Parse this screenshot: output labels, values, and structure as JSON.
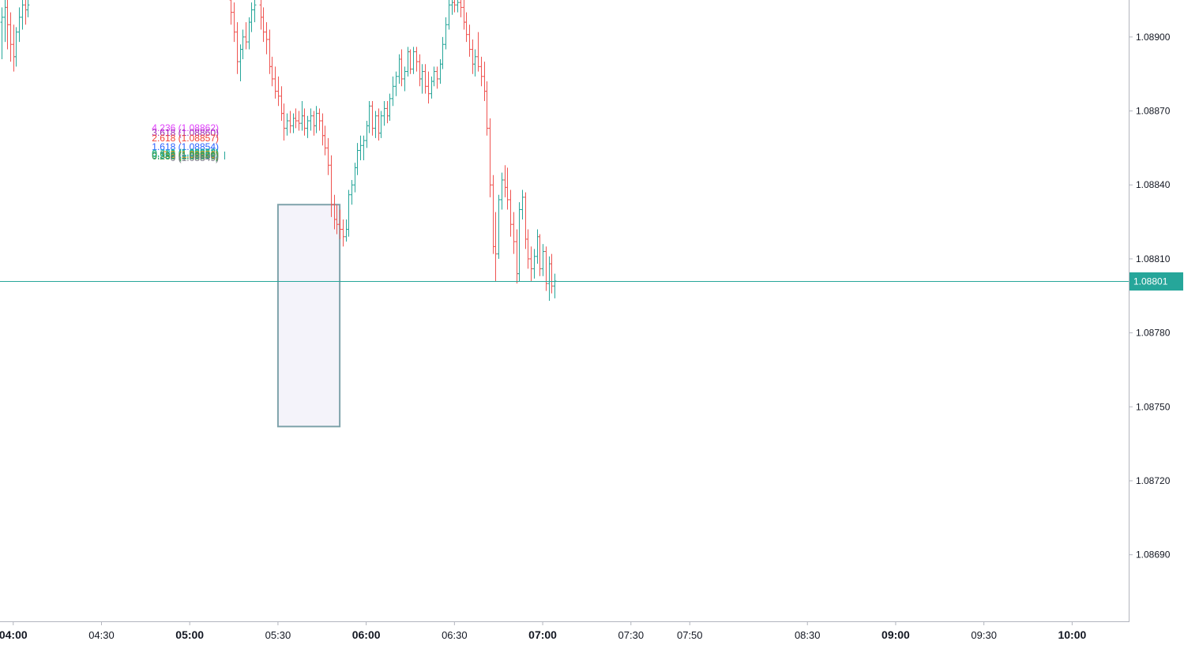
{
  "chart_data": {
    "type": "candlestick",
    "title": "",
    "y_axis": {
      "ticks": [
        "1.08900",
        "1.08870",
        "1.08840",
        "1.08810",
        "1.08780",
        "1.08750",
        "1.08720",
        "1.08690"
      ],
      "ylim": [
        1.08663,
        1.08915
      ]
    },
    "x_axis": {
      "ticks": [
        {
          "label": "04:00",
          "t": 240,
          "major": true
        },
        {
          "label": "04:30",
          "t": 270,
          "major": false
        },
        {
          "label": "05:00",
          "t": 300,
          "major": true
        },
        {
          "label": "05:30",
          "t": 330,
          "major": false
        },
        {
          "label": "06:00",
          "t": 360,
          "major": true
        },
        {
          "label": "06:30",
          "t": 390,
          "major": false
        },
        {
          "label": "07:00",
          "t": 420,
          "major": true
        },
        {
          "label": "07:30",
          "t": 450,
          "major": false
        },
        {
          "label": "07:50",
          "t": 470,
          "major": false
        },
        {
          "label": "08:30",
          "t": 510,
          "major": false
        },
        {
          "label": "09:00",
          "t": 540,
          "major": true
        },
        {
          "label": "09:30",
          "t": 570,
          "major": false
        },
        {
          "label": "10:00",
          "t": 600,
          "major": true
        }
      ],
      "xlim": [
        235.5,
        619.5
      ]
    },
    "current_price": {
      "value": 1.08801,
      "label": "1.08801"
    },
    "colors": {
      "up": "#26a69a",
      "down": "#ef5350",
      "price_line": "#26a69a"
    },
    "fib_levels": [
      {
        "label": "4.236 (1.08862)",
        "color": "#e040fb"
      },
      {
        "label": "3.618 (1.08860)",
        "color": "#9c27b0"
      },
      {
        "label": "2.618 (1.08857)",
        "color": "#f44336"
      },
      {
        "label": "1.618 (1.08854)",
        "color": "#2962ff"
      },
      {
        "label": "1 (1.08852)",
        "color": "#089981"
      },
      {
        "label": "0.786 (1.08851)",
        "color": "#00bcd4"
      },
      {
        "label": "0.618 (1.08851)",
        "color": "#4caf50"
      },
      {
        "label": "0.5 (1.08850)",
        "color": "#ff9800"
      },
      {
        "label": "0.382 (1.08850)",
        "color": "#009688"
      },
      {
        "label": "0.236 (1.08849)",
        "color": "#43a047"
      },
      {
        "label": "0 (1.08849)",
        "color": "#787b86"
      }
    ],
    "rectangle": {
      "t_start": 330,
      "t_end": 351,
      "price_top": 1.08832,
      "price_bottom": 1.08742,
      "stroke": "#7fa3ab",
      "fill": "#f4f3fa"
    },
    "candles": [
      {
        "t": 236,
        "o": 1.08906,
        "h": 1.08912,
        "l": 1.08891,
        "c": 1.08908
      },
      {
        "t": 237,
        "o": 1.08908,
        "h": 1.08915,
        "l": 1.08898,
        "c": 1.08912
      },
      {
        "t": 238,
        "o": 1.08912,
        "h": 1.08915,
        "l": 1.08895,
        "c": 1.08905
      },
      {
        "t": 239,
        "o": 1.08905,
        "h": 1.0891,
        "l": 1.0889,
        "c": 1.08897
      },
      {
        "t": 240,
        "o": 1.08897,
        "h": 1.08905,
        "l": 1.08886,
        "c": 1.08892
      },
      {
        "t": 241,
        "o": 1.08892,
        "h": 1.08904,
        "l": 1.08888,
        "c": 1.08902
      },
      {
        "t": 242,
        "o": 1.08902,
        "h": 1.08912,
        "l": 1.08898,
        "c": 1.08908
      },
      {
        "t": 243,
        "o": 1.08908,
        "h": 1.08915,
        "l": 1.08903,
        "c": 1.08913
      },
      {
        "t": 244,
        "o": 1.08913,
        "h": 1.08915,
        "l": 1.08905,
        "c": 1.08911
      },
      {
        "t": 245,
        "o": 1.08911,
        "h": 1.08915,
        "l": 1.08908,
        "c": 1.08913
      },
      {
        "t": 314,
        "o": 1.08915,
        "h": 1.08915,
        "l": 1.08905,
        "c": 1.0891
      },
      {
        "t": 315,
        "o": 1.0891,
        "h": 1.08914,
        "l": 1.08898,
        "c": 1.08902
      },
      {
        "t": 316,
        "o": 1.08902,
        "h": 1.08906,
        "l": 1.08885,
        "c": 1.0889
      },
      {
        "t": 317,
        "o": 1.0889,
        "h": 1.08897,
        "l": 1.08882,
        "c": 1.08895
      },
      {
        "t": 318,
        "o": 1.08895,
        "h": 1.08903,
        "l": 1.08891,
        "c": 1.089
      },
      {
        "t": 319,
        "o": 1.089,
        "h": 1.08906,
        "l": 1.08895,
        "c": 1.08898
      },
      {
        "t": 320,
        "o": 1.08898,
        "h": 1.08908,
        "l": 1.08895,
        "c": 1.08906
      },
      {
        "t": 321,
        "o": 1.08906,
        "h": 1.08914,
        "l": 1.08902,
        "c": 1.08911
      },
      {
        "t": 322,
        "o": 1.08911,
        "h": 1.08915,
        "l": 1.08906,
        "c": 1.08913
      },
      {
        "t": 324,
        "o": 1.08913,
        "h": 1.08915,
        "l": 1.08903,
        "c": 1.08908
      },
      {
        "t": 325,
        "o": 1.08908,
        "h": 1.08912,
        "l": 1.08898,
        "c": 1.08902
      },
      {
        "t": 326,
        "o": 1.08902,
        "h": 1.08906,
        "l": 1.08893,
        "c": 1.08899
      },
      {
        "t": 327,
        "o": 1.08899,
        "h": 1.08903,
        "l": 1.08885,
        "c": 1.08888
      },
      {
        "t": 328,
        "o": 1.08888,
        "h": 1.08892,
        "l": 1.0888,
        "c": 1.08883
      },
      {
        "t": 329,
        "o": 1.08883,
        "h": 1.08888,
        "l": 1.08875,
        "c": 1.08878
      },
      {
        "t": 330,
        "o": 1.08878,
        "h": 1.08884,
        "l": 1.08872,
        "c": 1.08876
      },
      {
        "t": 331,
        "o": 1.08876,
        "h": 1.0888,
        "l": 1.08866,
        "c": 1.08869
      },
      {
        "t": 332,
        "o": 1.08869,
        "h": 1.08873,
        "l": 1.08858,
        "c": 1.08863
      },
      {
        "t": 333,
        "o": 1.08863,
        "h": 1.08869,
        "l": 1.0886,
        "c": 1.08866
      },
      {
        "t": 334,
        "o": 1.08866,
        "h": 1.0887,
        "l": 1.08861,
        "c": 1.08864
      },
      {
        "t": 335,
        "o": 1.08864,
        "h": 1.08869,
        "l": 1.08861,
        "c": 1.08867
      },
      {
        "t": 336,
        "o": 1.08867,
        "h": 1.08871,
        "l": 1.08863,
        "c": 1.08866
      },
      {
        "t": 337,
        "o": 1.08866,
        "h": 1.0887,
        "l": 1.08862,
        "c": 1.08865
      },
      {
        "t": 338,
        "o": 1.08865,
        "h": 1.08874,
        "l": 1.08862,
        "c": 1.08868
      },
      {
        "t": 339,
        "o": 1.08868,
        "h": 1.08871,
        "l": 1.0886,
        "c": 1.08863
      },
      {
        "t": 340,
        "o": 1.08863,
        "h": 1.08868,
        "l": 1.08859,
        "c": 1.08866
      },
      {
        "t": 341,
        "o": 1.08866,
        "h": 1.08871,
        "l": 1.08862,
        "c": 1.08868
      },
      {
        "t": 342,
        "o": 1.08868,
        "h": 1.0887,
        "l": 1.0886,
        "c": 1.08864
      },
      {
        "t": 343,
        "o": 1.08864,
        "h": 1.08872,
        "l": 1.08861,
        "c": 1.08869
      },
      {
        "t": 344,
        "o": 1.08869,
        "h": 1.08871,
        "l": 1.08862,
        "c": 1.08866
      },
      {
        "t": 345,
        "o": 1.08866,
        "h": 1.08869,
        "l": 1.08856,
        "c": 1.0886
      },
      {
        "t": 346,
        "o": 1.0886,
        "h": 1.08864,
        "l": 1.08852,
        "c": 1.08855
      },
      {
        "t": 347,
        "o": 1.08855,
        "h": 1.08859,
        "l": 1.08844,
        "c": 1.08848
      },
      {
        "t": 348,
        "o": 1.08848,
        "h": 1.08852,
        "l": 1.08827,
        "c": 1.08832
      },
      {
        "t": 349,
        "o": 1.08832,
        "h": 1.08836,
        "l": 1.08822,
        "c": 1.08826
      },
      {
        "t": 350,
        "o": 1.08826,
        "h": 1.08832,
        "l": 1.0882,
        "c": 1.08824
      },
      {
        "t": 351,
        "o": 1.08824,
        "h": 1.0883,
        "l": 1.08818,
        "c": 1.08822
      },
      {
        "t": 352,
        "o": 1.08822,
        "h": 1.08826,
        "l": 1.08815,
        "c": 1.08819
      },
      {
        "t": 353,
        "o": 1.08819,
        "h": 1.08826,
        "l": 1.08817,
        "c": 1.08822
      },
      {
        "t": 354,
        "o": 1.08822,
        "h": 1.08838,
        "l": 1.08819,
        "c": 1.08836
      },
      {
        "t": 355,
        "o": 1.08836,
        "h": 1.08842,
        "l": 1.08832,
        "c": 1.0884
      },
      {
        "t": 356,
        "o": 1.0884,
        "h": 1.08849,
        "l": 1.08837,
        "c": 1.08847
      },
      {
        "t": 357,
        "o": 1.08847,
        "h": 1.08857,
        "l": 1.08844,
        "c": 1.08854
      },
      {
        "t": 358,
        "o": 1.08854,
        "h": 1.0886,
        "l": 1.0885,
        "c": 1.08856
      },
      {
        "t": 359,
        "o": 1.08856,
        "h": 1.0886,
        "l": 1.0885,
        "c": 1.08858
      },
      {
        "t": 360,
        "o": 1.08858,
        "h": 1.08866,
        "l": 1.08855,
        "c": 1.08864
      },
      {
        "t": 361,
        "o": 1.08864,
        "h": 1.08874,
        "l": 1.08861,
        "c": 1.08872
      },
      {
        "t": 362,
        "o": 1.08872,
        "h": 1.08874,
        "l": 1.0886,
        "c": 1.08863
      },
      {
        "t": 363,
        "o": 1.08863,
        "h": 1.0887,
        "l": 1.08859,
        "c": 1.08868
      },
      {
        "t": 364,
        "o": 1.08868,
        "h": 1.08871,
        "l": 1.08858,
        "c": 1.08861
      },
      {
        "t": 365,
        "o": 1.08861,
        "h": 1.0887,
        "l": 1.08859,
        "c": 1.08868
      },
      {
        "t": 366,
        "o": 1.08868,
        "h": 1.08874,
        "l": 1.08864,
        "c": 1.08871
      },
      {
        "t": 367,
        "o": 1.08871,
        "h": 1.08874,
        "l": 1.08865,
        "c": 1.08868
      },
      {
        "t": 368,
        "o": 1.08868,
        "h": 1.08877,
        "l": 1.08866,
        "c": 1.08875
      },
      {
        "t": 369,
        "o": 1.08875,
        "h": 1.08884,
        "l": 1.08872,
        "c": 1.0888
      },
      {
        "t": 370,
        "o": 1.0888,
        "h": 1.08886,
        "l": 1.08876,
        "c": 1.08884
      },
      {
        "t": 371,
        "o": 1.08884,
        "h": 1.08893,
        "l": 1.08881,
        "c": 1.08891
      },
      {
        "t": 372,
        "o": 1.08891,
        "h": 1.08895,
        "l": 1.0888,
        "c": 1.08883
      },
      {
        "t": 373,
        "o": 1.08883,
        "h": 1.08888,
        "l": 1.08878,
        "c": 1.08886
      },
      {
        "t": 374,
        "o": 1.08886,
        "h": 1.08896,
        "l": 1.08884,
        "c": 1.08894
      },
      {
        "t": 375,
        "o": 1.08894,
        "h": 1.08895,
        "l": 1.08885,
        "c": 1.08887
      },
      {
        "t": 376,
        "o": 1.08887,
        "h": 1.08896,
        "l": 1.08885,
        "c": 1.08894
      },
      {
        "t": 377,
        "o": 1.08894,
        "h": 1.08896,
        "l": 1.08886,
        "c": 1.0889
      },
      {
        "t": 378,
        "o": 1.0889,
        "h": 1.08893,
        "l": 1.0888,
        "c": 1.08883
      },
      {
        "t": 379,
        "o": 1.08883,
        "h": 1.08889,
        "l": 1.08877,
        "c": 1.08886
      },
      {
        "t": 380,
        "o": 1.08886,
        "h": 1.08889,
        "l": 1.08877,
        "c": 1.0888
      },
      {
        "t": 381,
        "o": 1.0888,
        "h": 1.08886,
        "l": 1.08873,
        "c": 1.08877
      },
      {
        "t": 382,
        "o": 1.08877,
        "h": 1.08884,
        "l": 1.08875,
        "c": 1.08882
      },
      {
        "t": 383,
        "o": 1.08882,
        "h": 1.08888,
        "l": 1.0888,
        "c": 1.08886
      },
      {
        "t": 384,
        "o": 1.08886,
        "h": 1.08888,
        "l": 1.08879,
        "c": 1.08883
      },
      {
        "t": 385,
        "o": 1.08883,
        "h": 1.08891,
        "l": 1.08881,
        "c": 1.08889
      },
      {
        "t": 386,
        "o": 1.08889,
        "h": 1.089,
        "l": 1.08887,
        "c": 1.08897
      },
      {
        "t": 387,
        "o": 1.08897,
        "h": 1.08908,
        "l": 1.08895,
        "c": 1.08905
      },
      {
        "t": 388,
        "o": 1.08905,
        "h": 1.08915,
        "l": 1.08903,
        "c": 1.08913
      },
      {
        "t": 389,
        "o": 1.08913,
        "h": 1.08915,
        "l": 1.08909,
        "c": 1.08914
      },
      {
        "t": 390,
        "o": 1.08914,
        "h": 1.08915,
        "l": 1.0891,
        "c": 1.08913
      },
      {
        "t": 391,
        "o": 1.08913,
        "h": 1.08915,
        "l": 1.0891,
        "c": 1.08914
      },
      {
        "t": 392,
        "o": 1.08914,
        "h": 1.08915,
        "l": 1.08908,
        "c": 1.08912
      },
      {
        "t": 393,
        "o": 1.08912,
        "h": 1.08915,
        "l": 1.08903,
        "c": 1.08906
      },
      {
        "t": 394,
        "o": 1.08906,
        "h": 1.0891,
        "l": 1.08898,
        "c": 1.08901
      },
      {
        "t": 395,
        "o": 1.08901,
        "h": 1.08905,
        "l": 1.08892,
        "c": 1.08895
      },
      {
        "t": 396,
        "o": 1.08895,
        "h": 1.08899,
        "l": 1.08885,
        "c": 1.08889
      },
      {
        "t": 397,
        "o": 1.08889,
        "h": 1.08895,
        "l": 1.08884,
        "c": 1.08892
      },
      {
        "t": 398,
        "o": 1.08892,
        "h": 1.08902,
        "l": 1.08886,
        "c": 1.08888
      },
      {
        "t": 399,
        "o": 1.08888,
        "h": 1.08892,
        "l": 1.0888,
        "c": 1.08884
      },
      {
        "t": 400,
        "o": 1.08884,
        "h": 1.0889,
        "l": 1.08874,
        "c": 1.08878
      },
      {
        "t": 401,
        "o": 1.08878,
        "h": 1.08882,
        "l": 1.0886,
        "c": 1.08863
      },
      {
        "t": 402,
        "o": 1.08863,
        "h": 1.08867,
        "l": 1.08835,
        "c": 1.0884
      },
      {
        "t": 403,
        "o": 1.0884,
        "h": 1.08844,
        "l": 1.08812,
        "c": 1.08815
      },
      {
        "t": 404,
        "o": 1.08815,
        "h": 1.08829,
        "l": 1.08801,
        "c": 1.08812
      },
      {
        "t": 405,
        "o": 1.08812,
        "h": 1.08836,
        "l": 1.0881,
        "c": 1.08834
      },
      {
        "t": 406,
        "o": 1.08834,
        "h": 1.08845,
        "l": 1.0883,
        "c": 1.08842
      },
      {
        "t": 407,
        "o": 1.08842,
        "h": 1.08848,
        "l": 1.08835,
        "c": 1.08839
      },
      {
        "t": 408,
        "o": 1.08839,
        "h": 1.08847,
        "l": 1.0883,
        "c": 1.08834
      },
      {
        "t": 409,
        "o": 1.08834,
        "h": 1.08838,
        "l": 1.08819,
        "c": 1.08824
      },
      {
        "t": 410,
        "o": 1.08824,
        "h": 1.08829,
        "l": 1.08812,
        "c": 1.08817
      },
      {
        "t": 411,
        "o": 1.08817,
        "h": 1.08822,
        "l": 1.088,
        "c": 1.08804
      },
      {
        "t": 412,
        "o": 1.08804,
        "h": 1.08833,
        "l": 1.08801,
        "c": 1.0883
      },
      {
        "t": 413,
        "o": 1.0883,
        "h": 1.08838,
        "l": 1.08826,
        "c": 1.08835
      },
      {
        "t": 414,
        "o": 1.08835,
        "h": 1.08837,
        "l": 1.08814,
        "c": 1.08818
      },
      {
        "t": 415,
        "o": 1.08818,
        "h": 1.08822,
        "l": 1.08806,
        "c": 1.0881
      },
      {
        "t": 416,
        "o": 1.0881,
        "h": 1.08815,
        "l": 1.08801,
        "c": 1.08806
      },
      {
        "t": 417,
        "o": 1.08806,
        "h": 1.08814,
        "l": 1.08802,
        "c": 1.08811
      },
      {
        "t": 418,
        "o": 1.08811,
        "h": 1.08822,
        "l": 1.08808,
        "c": 1.08819
      },
      {
        "t": 419,
        "o": 1.08819,
        "h": 1.0882,
        "l": 1.08803,
        "c": 1.08806
      },
      {
        "t": 420,
        "o": 1.08806,
        "h": 1.08816,
        "l": 1.08803,
        "c": 1.08813
      },
      {
        "t": 421,
        "o": 1.08813,
        "h": 1.08815,
        "l": 1.08797,
        "c": 1.088
      },
      {
        "t": 422,
        "o": 1.088,
        "h": 1.08811,
        "l": 1.08793,
        "c": 1.08808
      },
      {
        "t": 423,
        "o": 1.08808,
        "h": 1.08812,
        "l": 1.08796,
        "c": 1.08799
      },
      {
        "t": 424,
        "o": 1.08799,
        "h": 1.08804,
        "l": 1.08794,
        "c": 1.08801
      }
    ]
  }
}
